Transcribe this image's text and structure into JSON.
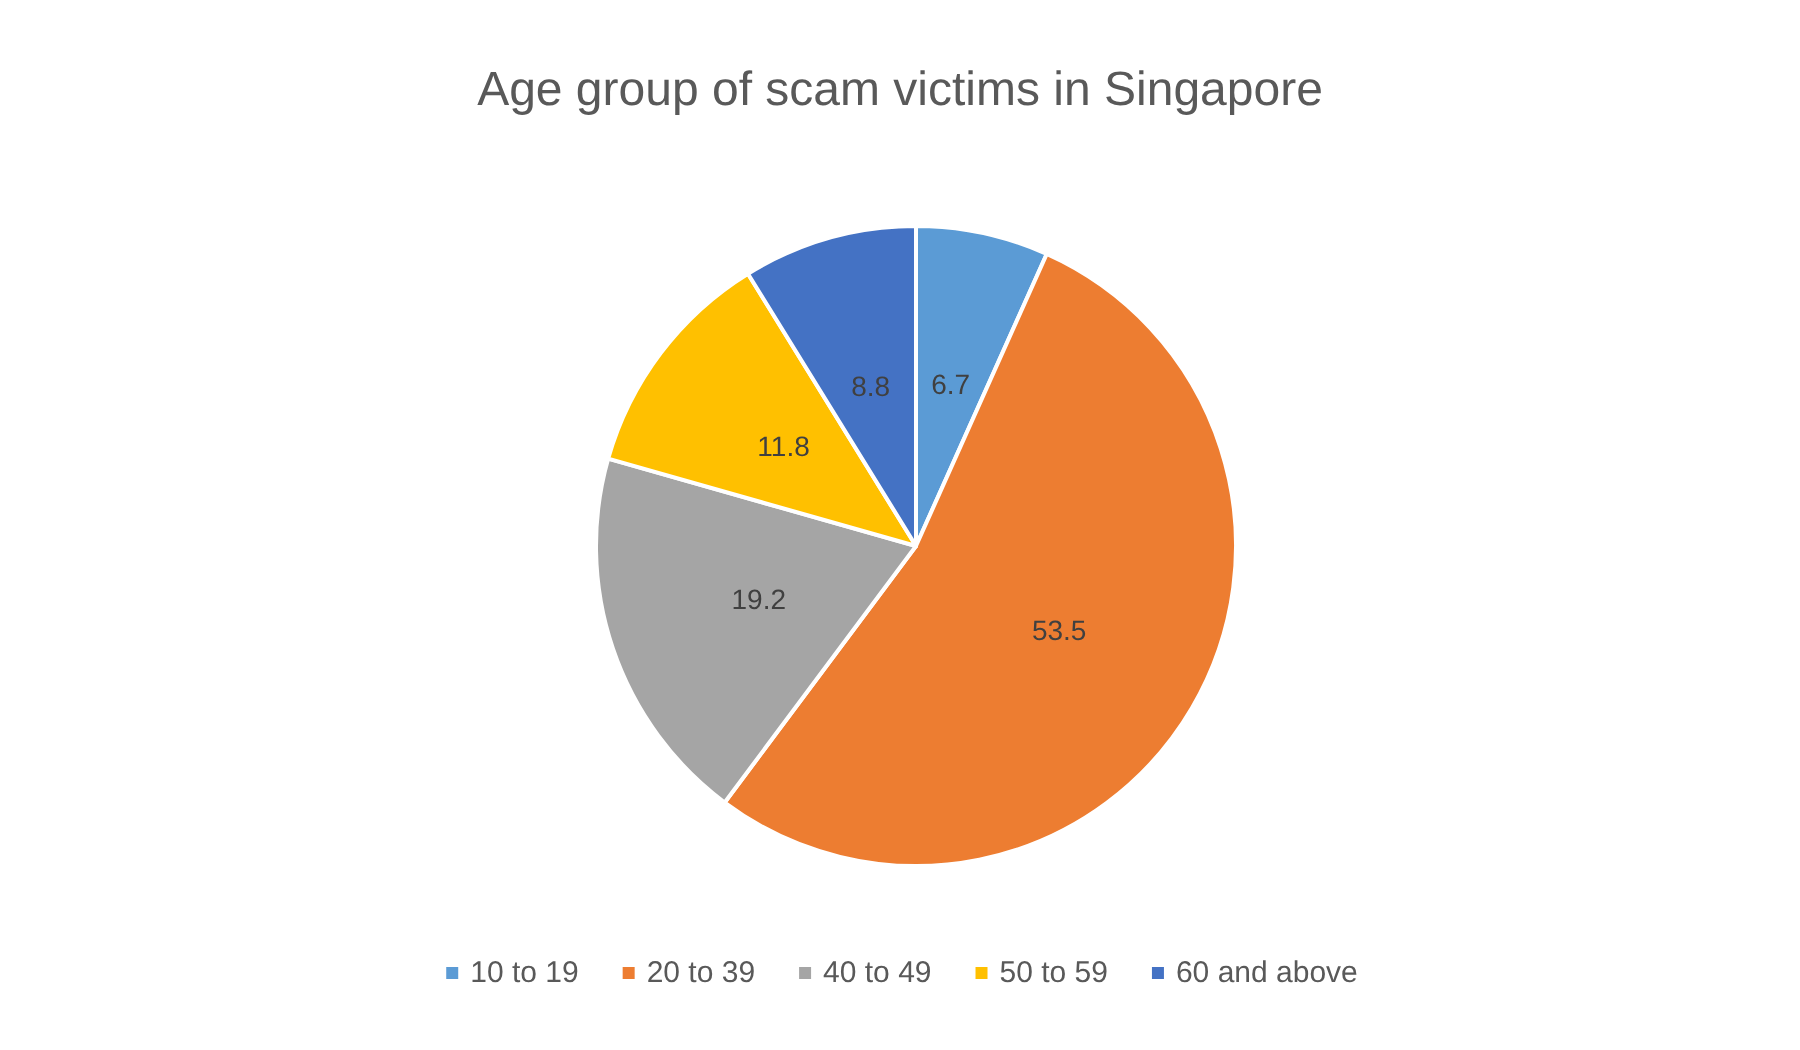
{
  "chart_data": {
    "type": "pie",
    "title": "Age group of scam victims in Singapore",
    "categories": [
      "10 to 19",
      "20 to 39",
      "40 to 49",
      "50 to 59",
      "60 and above"
    ],
    "values": [
      6.7,
      53.5,
      19.2,
      11.8,
      8.8
    ],
    "colors": [
      "#5b9bd5",
      "#ed7d31",
      "#a5a5a5",
      "#ffc000",
      "#4472c4"
    ],
    "data_labels": true,
    "legend": "bottom"
  }
}
